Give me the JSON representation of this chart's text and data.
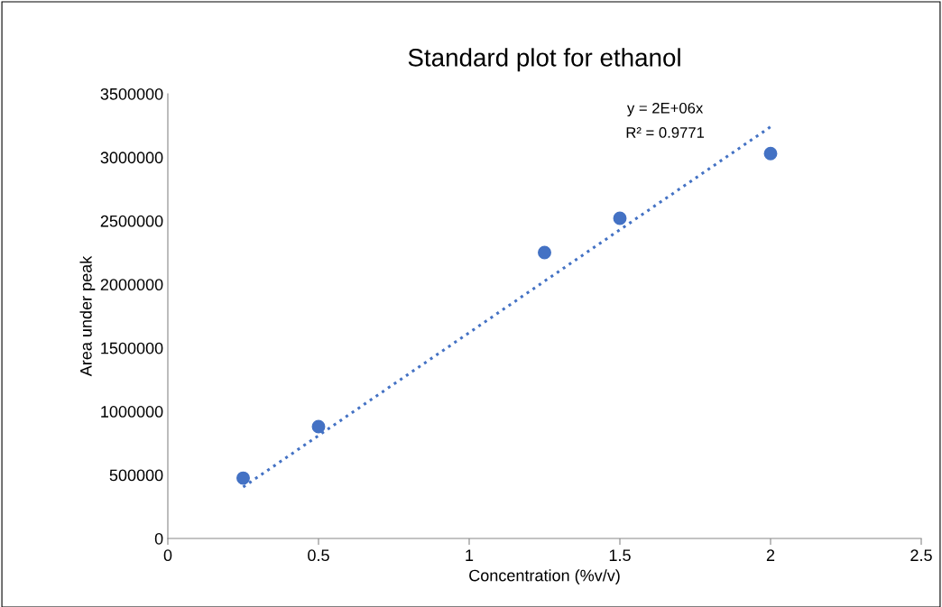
{
  "chart_data": {
    "type": "scatter",
    "title": "Standard plot for ethanol",
    "xlabel": "Concentration (%v/v)",
    "ylabel": "Area under peak",
    "x": [
      0.25,
      0.5,
      1.25,
      1.5,
      2
    ],
    "series": [
      {
        "color": "#4472c4",
        "marker": "circle",
        "values": [
          475000,
          880000,
          2250000,
          2520000,
          3030000
        ]
      },
      {
        "type": "line",
        "color": "#4472c4",
        "line_style": "dotted",
        "x": [
          0.25,
          2
        ],
        "values": [
          405000,
          3240000
        ]
      }
    ],
    "annotations": [
      "y = 2E+06x",
      "R² = 0.9771"
    ],
    "xlim": [
      0,
      2.5
    ],
    "xticks": [
      0,
      0.5,
      1,
      1.5,
      2,
      2.5
    ],
    "ylim": [
      0,
      3500000
    ],
    "yticks": [
      0,
      500000,
      1000000,
      1500000,
      2000000,
      2500000,
      3000000,
      3500000
    ],
    "grid": false,
    "legend": false
  }
}
